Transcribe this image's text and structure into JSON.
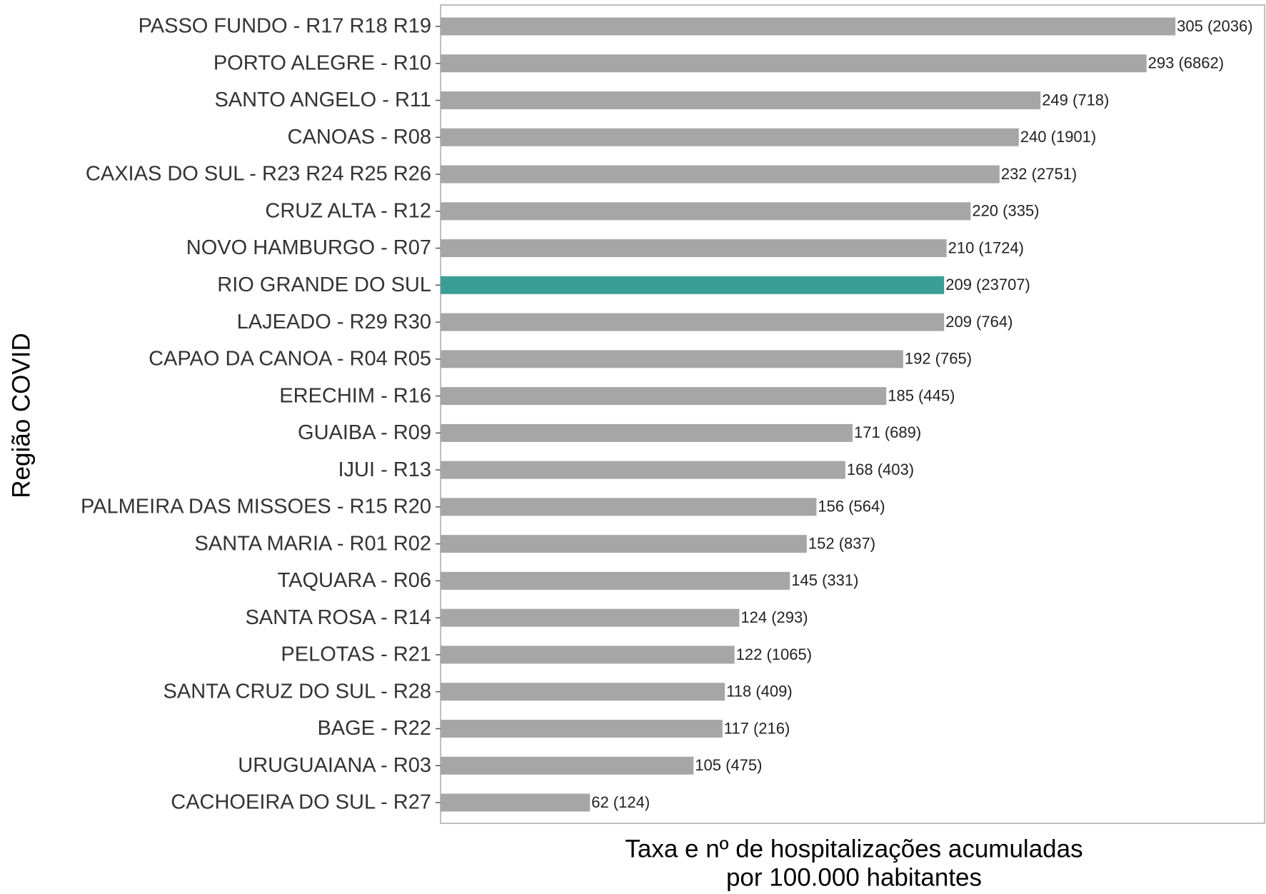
{
  "chart_data": {
    "type": "barh",
    "ylabel": "Região COVID",
    "xlabel": [
      "Taxa e nº de hospitalizações acumuladas",
      "por 100.000 habitantes"
    ],
    "categories": [
      "PASSO FUNDO - R17 R18 R19",
      "PORTO ALEGRE - R10",
      "SANTO ANGELO - R11",
      "CANOAS - R08",
      "CAXIAS DO SUL - R23 R24 R25 R26",
      "CRUZ ALTA - R12",
      "NOVO HAMBURGO - R07",
      "RIO GRANDE DO SUL",
      "LAJEADO - R29 R30",
      "CAPAO DA CANOA - R04 R05",
      "ERECHIM - R16",
      "GUAIBA - R09",
      "IJUI - R13",
      "PALMEIRA DAS MISSOES - R15 R20",
      "SANTA MARIA - R01 R02",
      "TAQUARA - R06",
      "SANTA ROSA - R14",
      "PELOTAS - R21",
      "SANTA CRUZ DO SUL - R28",
      "BAGE - R22",
      "URUGUAIANA - R03",
      "CACHOEIRA DO SUL - R27"
    ],
    "values": [
      305,
      293,
      249,
      240,
      232,
      220,
      210,
      209,
      209,
      192,
      185,
      171,
      168,
      156,
      152,
      145,
      124,
      122,
      118,
      117,
      105,
      62
    ],
    "value_labels": [
      "305 (2036)",
      "293 (6862)",
      "249 (718)",
      "240 (1901)",
      "232 (2751)",
      "220 (335)",
      "210 (1724)",
      "209 (23707)",
      "209 (764)",
      "192 (765)",
      "185 (445)",
      "171 (689)",
      "168 (403)",
      "156 (564)",
      "152 (837)",
      "145 (331)",
      "124 (293)",
      "122 (1065)",
      "118 (409)",
      "117 (216)",
      "105 (475)",
      "62 (124)"
    ],
    "colors": [
      "#a6a6a6",
      "#a6a6a6",
      "#a6a6a6",
      "#a6a6a6",
      "#a6a6a6",
      "#a6a6a6",
      "#a6a6a6",
      "#3a9e96",
      "#a6a6a6",
      "#a6a6a6",
      "#a6a6a6",
      "#a6a6a6",
      "#a6a6a6",
      "#a6a6a6",
      "#a6a6a6",
      "#a6a6a6",
      "#a6a6a6",
      "#a6a6a6",
      "#a6a6a6",
      "#a6a6a6",
      "#a6a6a6",
      "#a6a6a6"
    ],
    "xlim": [
      0,
      342
    ],
    "grid": false
  }
}
